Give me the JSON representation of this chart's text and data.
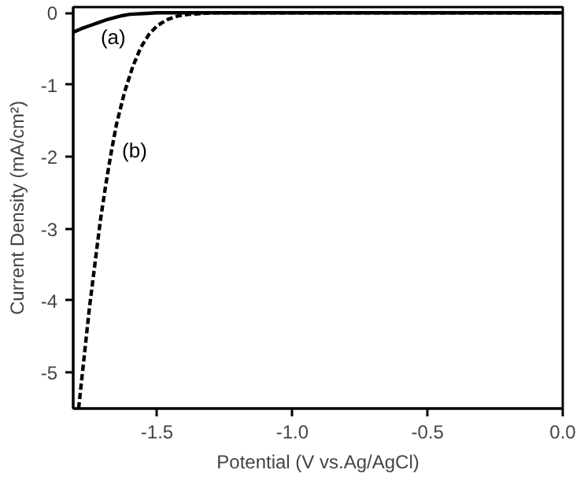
{
  "chart_data": {
    "type": "line",
    "xlabel": "Potential (V vs.Ag/AgCl)",
    "ylabel": "Current Density (mA/cm²)",
    "xlim": [
      -1.81,
      0.0
    ],
    "ylim": [
      -5.5,
      0.08
    ],
    "xticks": [
      -1.5,
      {
        "value": -1.0,
        "label": "-1.0"
      },
      -0.5,
      {
        "value": 0.0,
        "label": "0.0"
      }
    ],
    "yticks": [
      -5,
      -4,
      -3,
      -2,
      -1,
      0
    ],
    "grid": false,
    "marker": "none",
    "series": [
      {
        "name": "(a)",
        "color": "#000000",
        "line_style": "solid",
        "x": [
          -1.81,
          -1.78,
          -1.75,
          -1.72,
          -1.69,
          -1.66,
          -1.63,
          -1.6,
          -1.55,
          -1.5,
          -1.3,
          -1.0,
          -0.5,
          0.0
        ],
        "values": [
          -0.27,
          -0.22,
          -0.18,
          -0.14,
          -0.1,
          -0.07,
          -0.04,
          -0.02,
          -0.01,
          0.0,
          0.0,
          0.0,
          0.0,
          0.0
        ]
      },
      {
        "name": "(b)",
        "color": "#000000",
        "line_style": "dashed",
        "x": [
          -1.79,
          -1.77,
          -1.75,
          -1.73,
          -1.71,
          -1.69,
          -1.67,
          -1.65,
          -1.62,
          -1.59,
          -1.56,
          -1.53,
          -1.5,
          -1.46,
          -1.42,
          -1.38,
          -1.3,
          -1.0,
          -0.5,
          0.0
        ],
        "values": [
          -5.5,
          -4.8,
          -4.1,
          -3.5,
          -2.9,
          -2.4,
          -1.95,
          -1.55,
          -1.1,
          -0.75,
          -0.48,
          -0.3,
          -0.18,
          -0.09,
          -0.04,
          -0.02,
          0.0,
          0.0,
          0.0,
          0.0
        ]
      }
    ]
  }
}
